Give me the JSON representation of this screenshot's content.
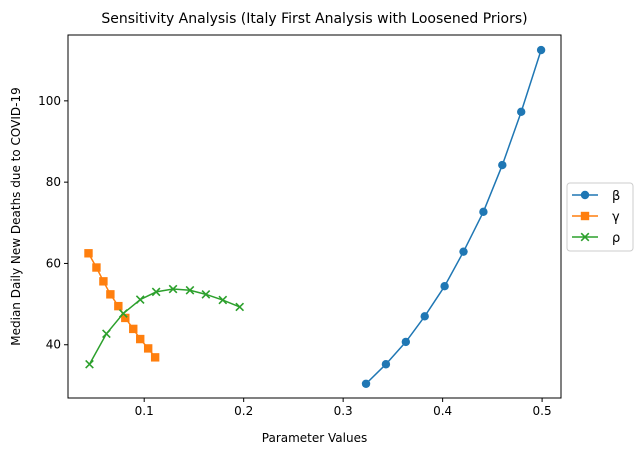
{
  "chart_data": {
    "type": "line",
    "title": "Sensitivity Analysis (Italy First Analysis with Loosened Priors)",
    "xlabel": "Parameter Values",
    "ylabel": "Median Daily New Deaths due to COVID-19",
    "xlim": [
      0.0234,
      0.519
    ],
    "ylim": [
      26.9,
      116.2
    ],
    "xticks": [
      {
        "value": 0.1,
        "label": "0.1"
      },
      {
        "value": 0.2,
        "label": "0.2"
      },
      {
        "value": 0.3,
        "label": "0.3"
      },
      {
        "value": 0.4,
        "label": "0.4"
      },
      {
        "value": 0.5,
        "label": "0.5"
      }
    ],
    "yticks": [
      {
        "value": 40,
        "label": "40"
      },
      {
        "value": 60,
        "label": "60"
      },
      {
        "value": 80,
        "label": "80"
      },
      {
        "value": 100,
        "label": "100"
      }
    ],
    "grid": false,
    "legend": "center-right, outside plot",
    "series": [
      {
        "name": "β",
        "color": "#1f77b4",
        "marker": "circle",
        "x": [
          0.323,
          0.343,
          0.363,
          0.382,
          0.402,
          0.421,
          0.441,
          0.46,
          0.479,
          0.499
        ],
        "y": [
          30.4,
          35.2,
          40.7,
          47.0,
          54.4,
          62.9,
          72.7,
          84.2,
          97.3,
          112.5
        ]
      },
      {
        "name": "γ",
        "color": "#ff7f0e",
        "marker": "square",
        "x": [
          0.044,
          0.052,
          0.059,
          0.066,
          0.074,
          0.081,
          0.089,
          0.096,
          0.104,
          0.111
        ],
        "y": [
          62.5,
          59.0,
          55.6,
          52.4,
          49.5,
          46.6,
          43.9,
          41.4,
          39.1,
          36.9
        ]
      },
      {
        "name": "ρ",
        "color": "#2ca02c",
        "marker": "x",
        "x": [
          0.045,
          0.062,
          0.079,
          0.096,
          0.112,
          0.129,
          0.146,
          0.162,
          0.179,
          0.196
        ],
        "y": [
          35.2,
          42.7,
          47.7,
          51.1,
          53.0,
          53.7,
          53.4,
          52.4,
          51.0,
          49.3
        ]
      }
    ]
  }
}
